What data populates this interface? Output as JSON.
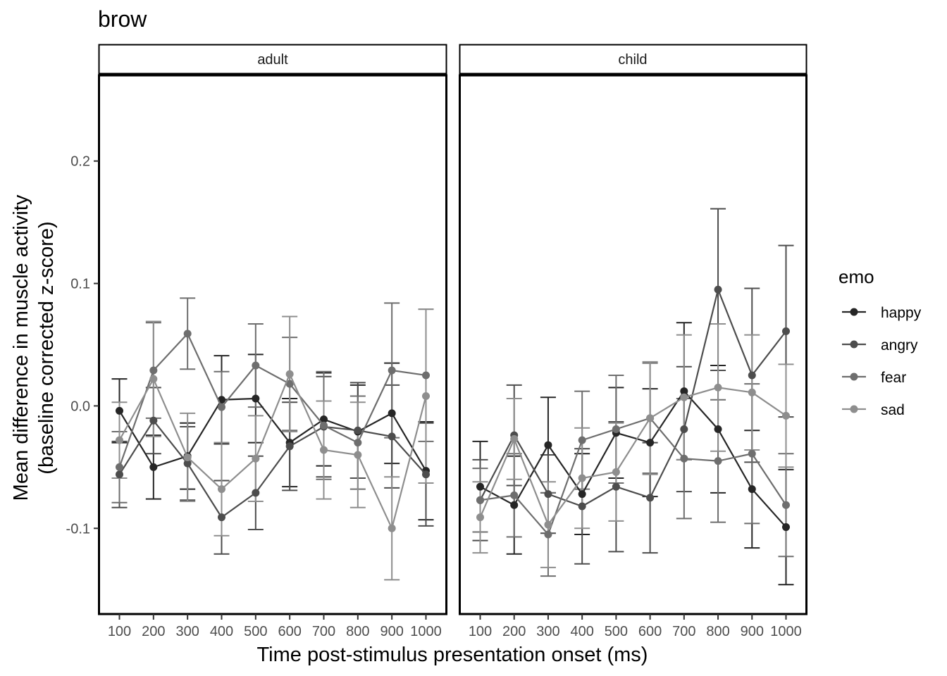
{
  "chart_data": {
    "type": "line",
    "title": "brow",
    "xlabel": "Time post-stimulus presentation onset (ms)",
    "ylabel_line1": "Mean difference in muscle activity",
    "ylabel_line2": "(baseline corrected z-score)",
    "x": [
      100,
      200,
      300,
      400,
      500,
      600,
      700,
      800,
      900,
      1000
    ],
    "x_tick_labels": [
      "100",
      "200",
      "300",
      "400",
      "500",
      "600",
      "700",
      "800",
      "900",
      "1000"
    ],
    "ylim": [
      -0.17,
      0.27
    ],
    "y_ticks": [
      -0.1,
      0.0,
      0.1,
      0.2
    ],
    "y_tick_labels": [
      "-0.1",
      "0.0",
      "0.1",
      "0.2"
    ],
    "grid": false,
    "legend": {
      "title": "emo",
      "placement": "right",
      "entries": [
        "happy",
        "angry",
        "fear",
        "sad"
      ]
    },
    "colors": {
      "happy": "#262626",
      "angry": "#4d4d4d",
      "fear": "#6e6e6e",
      "sad": "#8e8e8e"
    },
    "panels": [
      {
        "label": "adult",
        "series": [
          {
            "name": "happy",
            "values": [
              -0.004,
              -0.05,
              -0.041,
              0.005,
              0.006,
              -0.03,
              -0.011,
              -0.021,
              -0.006,
              -0.053
            ],
            "err": [
              0.026,
              0.026,
              0.027,
              0.036,
              0.036,
              0.036,
              0.038,
              0.038,
              0.041,
              0.04
            ]
          },
          {
            "name": "angry",
            "values": [
              -0.056,
              -0.012,
              -0.047,
              -0.091,
              -0.071,
              -0.033,
              -0.017,
              -0.02,
              -0.025,
              -0.056
            ],
            "err": [
              0.027,
              0.027,
              0.03,
              0.03,
              0.03,
              0.036,
              0.041,
              0.039,
              0.042,
              0.042
            ]
          },
          {
            "name": "fear",
            "values": [
              -0.05,
              0.029,
              0.059,
              -0.001,
              0.033,
              0.018,
              -0.016,
              -0.03,
              0.029,
              0.025
            ],
            "err": [
              0.029,
              0.039,
              0.029,
              0.029,
              0.034,
              0.038,
              0.044,
              0.038,
              0.055,
              0.054
            ]
          },
          {
            "name": "sad",
            "values": [
              -0.028,
              0.022,
              -0.042,
              -0.068,
              -0.043,
              0.026,
              -0.036,
              -0.04,
              -0.1,
              0.008
            ],
            "err": [
              0.031,
              0.047,
              0.036,
              0.038,
              0.035,
              0.047,
              0.04,
              0.043,
              0.042,
              0.071
            ]
          }
        ]
      },
      {
        "label": "child",
        "series": [
          {
            "name": "happy",
            "values": [
              -0.066,
              -0.081,
              -0.032,
              -0.072,
              -0.022,
              -0.03,
              0.012,
              -0.019,
              -0.068,
              -0.099
            ],
            "err": [
              0.037,
              0.04,
              0.039,
              0.033,
              0.037,
              0.044,
              0.056,
              0.052,
              0.048,
              0.047
            ]
          },
          {
            "name": "angry",
            "values": [
              -0.077,
              -0.024,
              -0.072,
              -0.082,
              -0.066,
              -0.075,
              -0.019,
              0.095,
              0.025,
              0.061
            ],
            "err": [
              0.033,
              0.041,
              0.032,
              0.047,
              0.053,
              0.045,
              0.051,
              0.066,
              0.071,
              0.07
            ]
          },
          {
            "name": "fear",
            "values": [
              -0.077,
              -0.073,
              -0.105,
              -0.028,
              -0.019,
              -0.01,
              -0.043,
              -0.045,
              -0.039,
              -0.081
            ],
            "err": [
              0.026,
              0.034,
              0.034,
              0.04,
              0.044,
              0.045,
              0.049,
              0.05,
              0.057,
              0.042
            ]
          },
          {
            "name": "sad",
            "values": [
              -0.091,
              -0.027,
              -0.097,
              -0.059,
              -0.054,
              -0.01,
              0.007,
              0.015,
              0.011,
              -0.008
            ],
            "err": [
              0.029,
              0.033,
              0.035,
              0.041,
              0.04,
              0.046,
              0.051,
              0.052,
              0.047,
              0.042
            ]
          }
        ]
      }
    ]
  }
}
